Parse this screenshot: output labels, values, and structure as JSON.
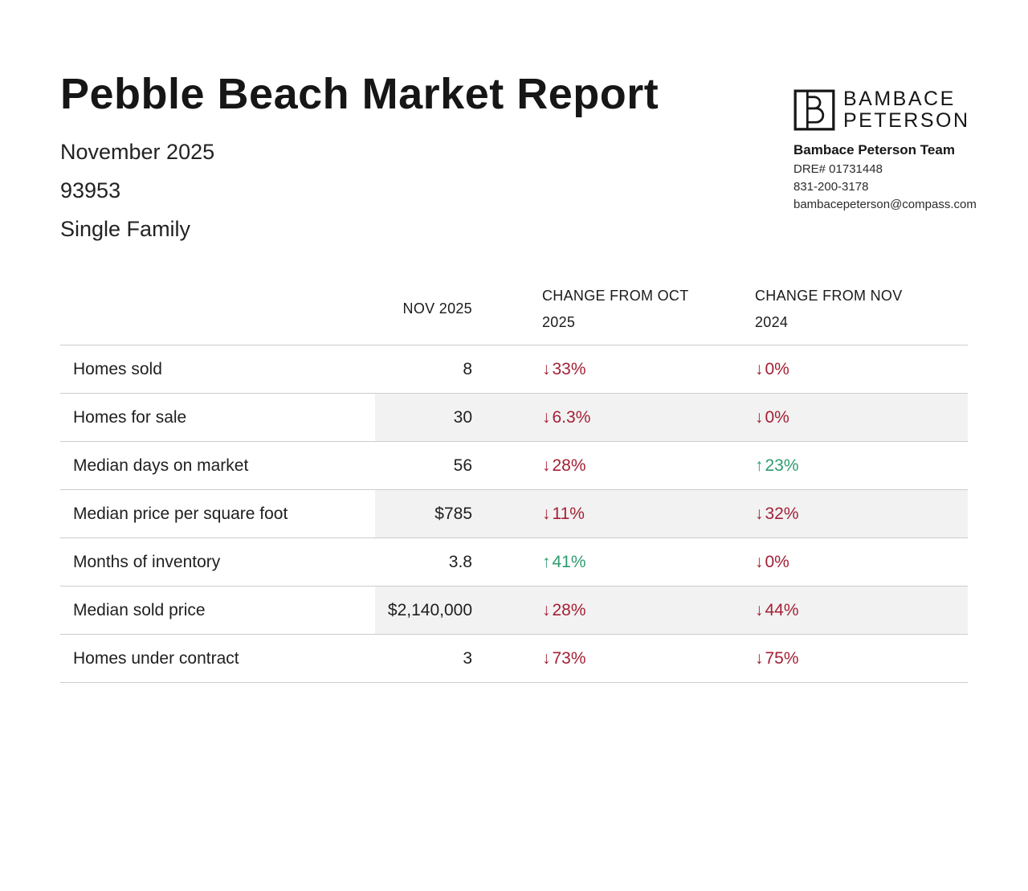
{
  "page": {
    "title": "Pebble Beach Market Report",
    "subtitle_month": "November 2025",
    "subtitle_zip": "93953",
    "subtitle_type": "Single Family"
  },
  "brand": {
    "logo_line1": "BAMBACE",
    "logo_line2": "PETERSON",
    "team": "Bambace Peterson Team",
    "dre": "DRE# 01731448",
    "phone": "831-200-3178",
    "email": "bambacepeterson@compass.com"
  },
  "table": {
    "headers": {
      "value_col": "NOV 2025",
      "change_oct_col": "CHANGE FROM OCT 2025",
      "change_nov_col": "CHANGE FROM NOV 2024"
    },
    "rows": [
      {
        "label": "Homes sold",
        "value": "8",
        "change_oct": {
          "arrow": "↓",
          "text": "33%",
          "trend": "down"
        },
        "change_nov": {
          "arrow": "↓",
          "text": "0%",
          "trend": "down"
        }
      },
      {
        "label": "Homes for sale",
        "value": "30",
        "change_oct": {
          "arrow": "↓",
          "text": "6.3%",
          "trend": "down"
        },
        "change_nov": {
          "arrow": "↓",
          "text": "0%",
          "trend": "down"
        }
      },
      {
        "label": "Median days on market",
        "value": "56",
        "change_oct": {
          "arrow": "↓",
          "text": "28%",
          "trend": "down"
        },
        "change_nov": {
          "arrow": "↑",
          "text": "23%",
          "trend": "up"
        }
      },
      {
        "label": "Median price per square foot",
        "value": "$785",
        "change_oct": {
          "arrow": "↓",
          "text": "11%",
          "trend": "down"
        },
        "change_nov": {
          "arrow": "↓",
          "text": "32%",
          "trend": "down"
        }
      },
      {
        "label": "Months of inventory",
        "value": "3.8",
        "change_oct": {
          "arrow": "↑",
          "text": "41%",
          "trend": "up"
        },
        "change_nov": {
          "arrow": "↓",
          "text": "0%",
          "trend": "down"
        }
      },
      {
        "label": "Median sold price",
        "value": "$2,140,000",
        "change_oct": {
          "arrow": "↓",
          "text": "28%",
          "trend": "down"
        },
        "change_nov": {
          "arrow": "↓",
          "text": "44%",
          "trend": "down"
        }
      },
      {
        "label": "Homes under contract",
        "value": "3",
        "change_oct": {
          "arrow": "↓",
          "text": "73%",
          "trend": "down"
        },
        "change_nov": {
          "arrow": "↓",
          "text": "75%",
          "trend": "down"
        }
      }
    ]
  },
  "colors": {
    "down": "#a32035",
    "up": "#2e9c6e",
    "stripe": "#f2f2f2",
    "border": "#cccccc",
    "text": "#1f1f1f"
  }
}
